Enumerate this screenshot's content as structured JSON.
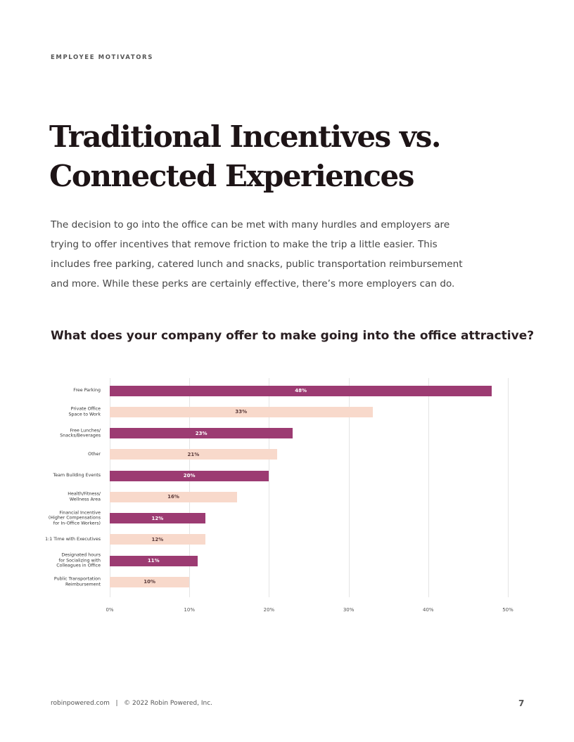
{
  "header": {
    "section": "EMPLOYEE MOTIVATORS"
  },
  "title": [
    "Traditional Incentives vs.",
    "Connected Experiences"
  ],
  "body": "The decision to go into the office can be met with many hurdles and employers are trying to offer incentives that remove friction to make the trip a little easier. This includes free parking, catered lunch and snacks, public transportation reimbursement and more. While these perks are certainly effective, there’s more employers can do.",
  "chart_data": {
    "type": "hbar",
    "title": "What does your company offer to make going into the office attractive?",
    "categories": [
      "Free Parking",
      "Private Office\nSpace to Work",
      "Free Lunches/\nSnacks/Beverages",
      "Other",
      "Team Building Events",
      "Health/Fitness/\nWellness Area",
      "Financial Incentive\n(Higher Compensations\nfor In-Office Workers)",
      "1:1 Time with Executives",
      "Designated hours\nfor Socializing with\nColleagues in Office",
      "Public Transportation\nReimbursement"
    ],
    "values": [
      48,
      33,
      23,
      21,
      20,
      16,
      12,
      12,
      11,
      10
    ],
    "value_labels": [
      "48%",
      "33%",
      "23%",
      "21%",
      "20%",
      "16%",
      "12%",
      "12%",
      "11%",
      "10%"
    ],
    "colors": [
      "#9c3b72",
      "#f8d9cb",
      "#9c3b72",
      "#f8d9cb",
      "#9c3b72",
      "#f8d9cb",
      "#9c3b72",
      "#f8d9cb",
      "#9c3b72",
      "#f8d9cb"
    ],
    "xlim": [
      0,
      50
    ],
    "xticks": [
      {
        "value": 0,
        "label": "0%"
      },
      {
        "value": 10,
        "label": "10%"
      },
      {
        "value": 20,
        "label": "20%"
      },
      {
        "value": 30,
        "label": "30%"
      },
      {
        "value": 40,
        "label": "40%"
      },
      {
        "value": 50,
        "label": "50%"
      }
    ],
    "grid": true
  },
  "footer": {
    "site": "robinpowered.com",
    "separator": "|",
    "copyright": "© 2022 Robin Powered, Inc.",
    "page": "7"
  }
}
